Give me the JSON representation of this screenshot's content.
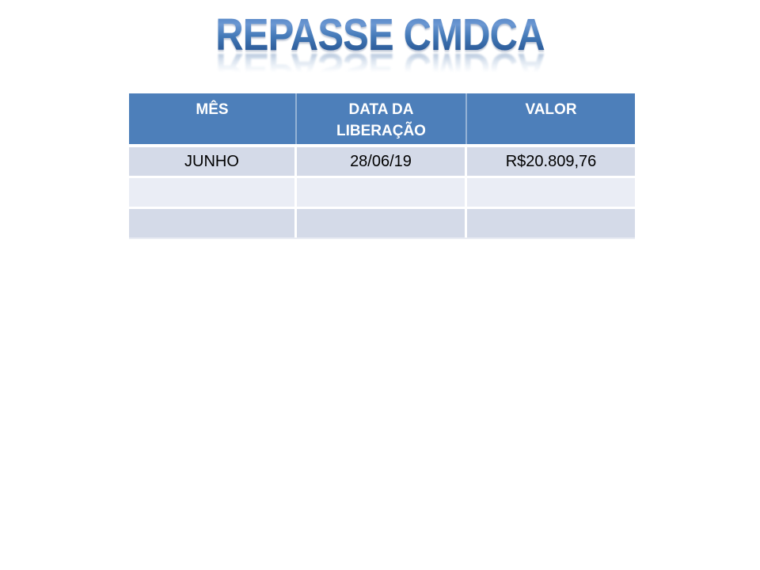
{
  "slide": {
    "title": "REPASSE CMDCA",
    "background_color": "#ffffff"
  },
  "title_style": {
    "gradient_top": "#6b97d2",
    "gradient_mid": "#447ab8",
    "gradient_bottom": "#2a5997",
    "bevel_highlight": "#aac7e8",
    "has_reflection": true
  },
  "table": {
    "headers": [
      "MÊS",
      "DATA DA LIBERAÇÃO",
      "VALOR"
    ],
    "rows": [
      [
        "JUNHO",
        "28/06/19",
        "R$20.809,76"
      ],
      [
        "",
        "",
        ""
      ],
      [
        "",
        "",
        ""
      ]
    ],
    "colors": {
      "header_bg": "#4d7fba",
      "header_text": "#ffffff",
      "band_dark": "#d4dae8",
      "band_light": "#eaedf5",
      "body_text": "#000000",
      "separator": "#ffffff"
    }
  }
}
